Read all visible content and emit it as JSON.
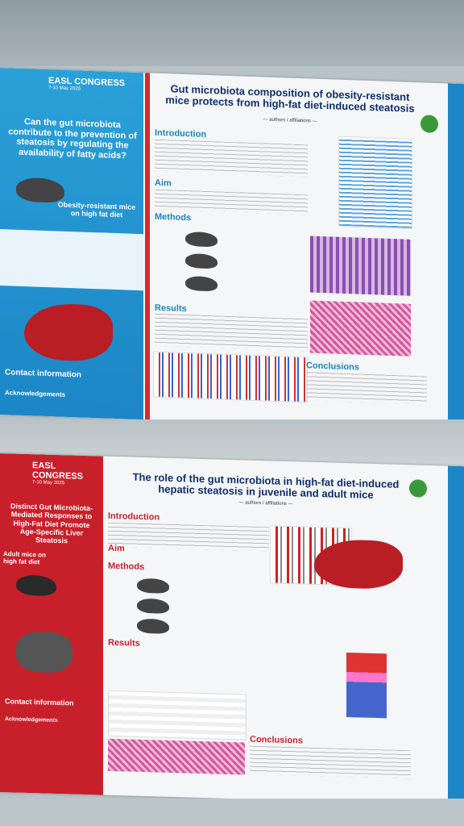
{
  "poster1": {
    "congress": "EASL CONGRESS",
    "dates": "7-10 May 2025",
    "side_question": "Can the gut microbiota contribute to the prevention of steatosis by regulating the availability of fatty acids?",
    "side_caption": "Obesity-resistant mice on high fat diet",
    "title": "Gut microbiota composition of obesity-resistant mice protects from high-fat diet-induced steatosis",
    "intro_heading": "Introduction",
    "aim_heading": "Aim",
    "methods_heading": "Methods",
    "results_heading": "Results",
    "conclusions_heading": "Conclusions",
    "contact_heading": "Contact information",
    "ack_heading": "Acknowledgements"
  },
  "poster2": {
    "congress": "EASL CONGRESS",
    "dates": "7-10 May 2025",
    "side_title": "Distinct Gut Microbiota-Mediated Responses to High-Fat Diet Promote Age-Specific Liver Steatosis",
    "side_caption": "Adult mice on high fat diet",
    "title": "The role of the gut microbiota in high-fat diet-induced hepatic steatosis in juvenile and adult mice",
    "intro_heading": "Introduction",
    "aim_heading": "Aim",
    "methods_heading": "Methods",
    "results_heading": "Results",
    "conclusions_heading": "Conclusions",
    "contact_heading": "Contact information",
    "ack_heading": "Acknowledgements"
  }
}
